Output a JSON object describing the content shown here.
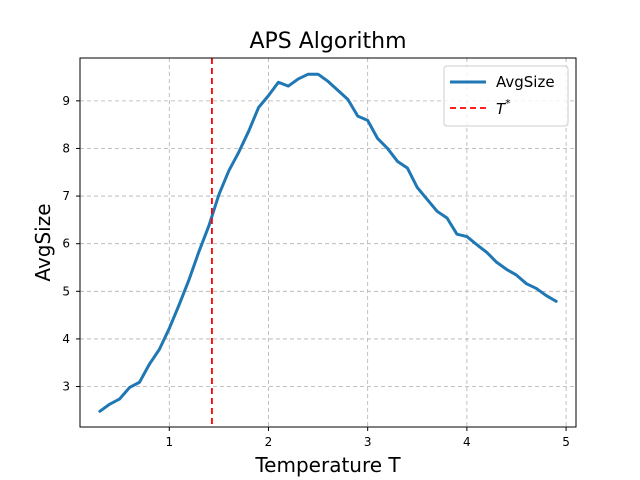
{
  "chart_data": {
    "type": "line",
    "title": "APS Algorithm",
    "xlabel": "Temperature T",
    "ylabel": "AvgSize",
    "xlim": [
      0.1,
      5.1
    ],
    "ylim": [
      2.15,
      9.9
    ],
    "xticks": [
      1,
      2,
      3,
      4,
      5
    ],
    "yticks": [
      3,
      4,
      5,
      6,
      7,
      8,
      9
    ],
    "grid": true,
    "legend_position": "top-right",
    "series": [
      {
        "name": "AvgSize",
        "color": "#1f77b4",
        "style": "solid",
        "x": [
          0.3,
          0.4,
          0.5,
          0.6,
          0.7,
          0.8,
          0.9,
          1.0,
          1.1,
          1.2,
          1.3,
          1.4,
          1.5,
          1.6,
          1.7,
          1.8,
          1.9,
          2.0,
          2.1,
          2.2,
          2.3,
          2.4,
          2.5,
          2.6,
          2.7,
          2.8,
          2.9,
          3.0,
          3.1,
          3.2,
          3.3,
          3.4,
          3.5,
          3.6,
          3.7,
          3.8,
          3.9,
          4.0,
          4.1,
          4.2,
          4.3,
          4.4,
          4.5,
          4.6,
          4.7,
          4.8,
          4.9
        ],
        "values": [
          2.48,
          2.63,
          2.74,
          2.98,
          3.09,
          3.47,
          3.78,
          4.22,
          4.72,
          5.25,
          5.84,
          6.38,
          7.03,
          7.53,
          7.92,
          8.36,
          8.86,
          9.11,
          9.39,
          9.31,
          9.46,
          9.56,
          9.56,
          9.41,
          9.22,
          9.03,
          8.68,
          8.59,
          8.21,
          8.0,
          7.73,
          7.59,
          7.18,
          6.93,
          6.68,
          6.54,
          6.2,
          6.15,
          5.98,
          5.82,
          5.61,
          5.46,
          5.34,
          5.16,
          5.06,
          4.91,
          4.79
        ]
      },
      {
        "name": "T*",
        "color": "#ff0000",
        "style": "dashed",
        "x_constant": 1.43
      }
    ]
  }
}
